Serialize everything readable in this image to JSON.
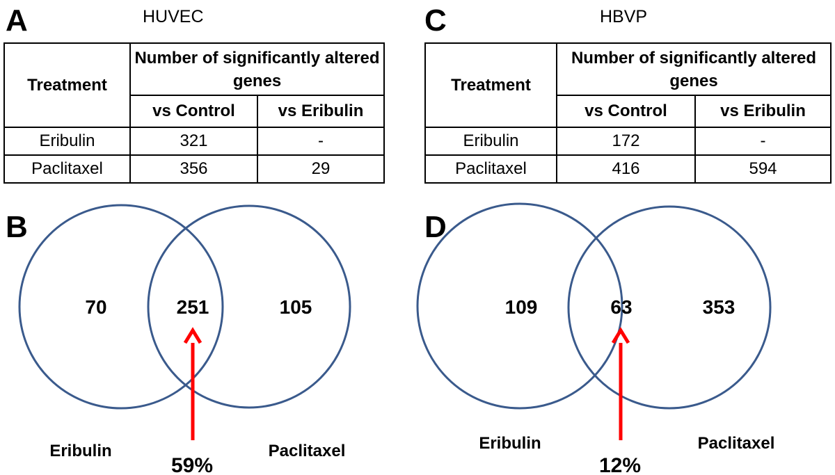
{
  "panels": [
    {
      "letter": "A",
      "cell_type": "HUVEC",
      "table": {
        "treatment_header": "Treatment",
        "main_header": "Number of significantly altered genes",
        "sub_headers": [
          "vs Control",
          "vs Eribulin"
        ],
        "rows": [
          {
            "treatment": "Eribulin",
            "vs_control": "321",
            "vs_eribulin": "-"
          },
          {
            "treatment": "Paclitaxel",
            "vs_control": "356",
            "vs_eribulin": "29"
          }
        ]
      }
    },
    {
      "letter": "C",
      "cell_type": "HBVP",
      "table": {
        "treatment_header": "Treatment",
        "main_header": "Number of significantly altered genes",
        "sub_headers": [
          "vs Control",
          "vs Eribulin"
        ],
        "rows": [
          {
            "treatment": "Eribulin",
            "vs_control": "172",
            "vs_eribulin": "-"
          },
          {
            "treatment": "Paclitaxel",
            "vs_control": "416",
            "vs_eribulin": "594"
          }
        ]
      }
    },
    {
      "letter": "B",
      "venn": {
        "left_only": "70",
        "overlap": "251",
        "right_only": "105",
        "left_label": "Eribulin",
        "right_label": "Paclitaxel",
        "overlap_percent": "59%"
      }
    },
    {
      "letter": "D",
      "venn": {
        "left_only": "109",
        "overlap": "63",
        "right_only": "353",
        "left_label": "Eribulin",
        "right_label": "Paclitaxel",
        "overlap_percent": "12%"
      }
    }
  ],
  "colors": {
    "circle_stroke": "#3a5a8c",
    "arrow": "#ff0000",
    "text": "#000000",
    "table_border": "#000000"
  }
}
